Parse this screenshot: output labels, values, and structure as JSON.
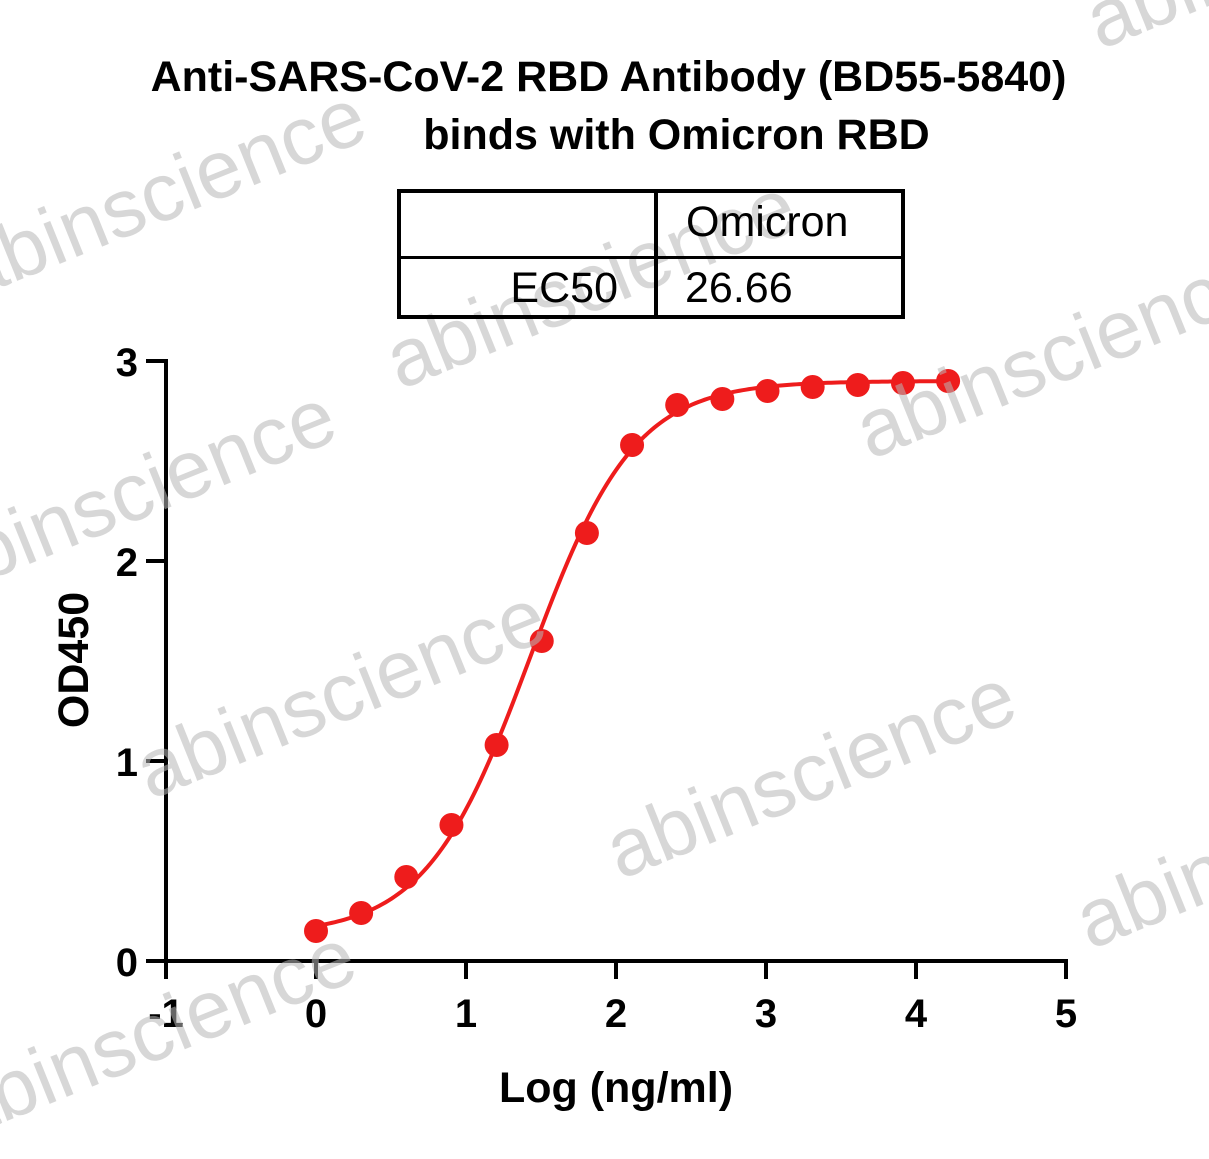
{
  "title_line1": "Anti-SARS-CoV-2 RBD Antibody (BD55-5840)",
  "title_line2": "binds with Omicron RBD",
  "watermark": "abinscience",
  "ec50_table": {
    "column_header": "Omicron",
    "row_label": "EC50",
    "value": "26.66"
  },
  "chart_data": {
    "type": "scatter",
    "title": "Anti-SARS-CoV-2 RBD Antibody (BD55-5840) binds with Omicron RBD",
    "xlabel": "Log (ng/ml)",
    "ylabel": "OD450",
    "xlim": [
      -1,
      5
    ],
    "ylim": [
      0,
      3
    ],
    "x_ticks": [
      "-1",
      "0",
      "1",
      "2",
      "3",
      "4",
      "5"
    ],
    "y_ticks": [
      "0",
      "1",
      "2",
      "3"
    ],
    "grid": false,
    "series": [
      {
        "color": "#ee1c1c",
        "x": [
          0.0,
          0.301,
          0.602,
          0.903,
          1.204,
          1.505,
          1.806,
          2.107,
          2.408,
          2.709,
          3.01,
          3.311,
          3.612,
          3.913,
          4.214
        ],
        "y": [
          0.15,
          0.24,
          0.42,
          0.68,
          1.08,
          1.6,
          2.14,
          2.58,
          2.78,
          2.81,
          2.85,
          2.87,
          2.88,
          2.89,
          2.9
        ],
        "fit": {
          "model": "four-parameter logistic",
          "bottom": 0.13,
          "top": 2.9,
          "logEC50": 1.426,
          "hill_slope": 1.25
        }
      }
    ]
  }
}
